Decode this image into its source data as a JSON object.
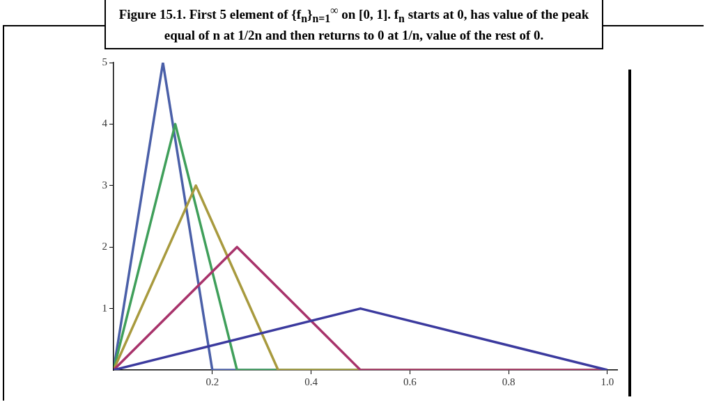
{
  "chart_data": {
    "type": "line",
    "title": "Figure 15.1. First 5 element of {f$_{n}$}$_{n=1}$$^{∞}$ on [0, 1]. f$_{n}$ starts at 0, has value of the peak equal of n at 1/2n and then returns to 0 at 1/n, value of the rest of 0.",
    "series": [
      {
        "color": "#3b3a9e",
        "x": [
          0,
          0.5,
          1
        ],
        "values": [
          0,
          1,
          0
        ]
      },
      {
        "color": "#a8336b",
        "x": [
          0,
          0.25,
          0.5,
          1
        ],
        "values": [
          0,
          2,
          0,
          0
        ]
      },
      {
        "color": "#a89a3e",
        "x": [
          0,
          0.1667,
          0.3333,
          1
        ],
        "values": [
          0,
          3,
          0,
          0
        ]
      },
      {
        "color": "#3f9f5a",
        "x": [
          0,
          0.125,
          0.25,
          1
        ],
        "values": [
          0,
          4,
          0,
          0
        ]
      },
      {
        "color": "#4a5fa8",
        "x": [
          0,
          0.1,
          0.2,
          1
        ],
        "values": [
          0,
          5,
          0,
          0
        ]
      }
    ],
    "xlim": [
      0,
      1.02
    ],
    "xticks": [
      0.2,
      0.4,
      0.6,
      0.8,
      {
        "value": 1,
        "label": "1.0"
      }
    ],
    "ylim": [
      0,
      5
    ],
    "yticks": [
      1,
      2,
      3,
      4,
      5
    ],
    "grid": false,
    "legend": false,
    "marker": "none",
    "line_style": "solid"
  }
}
